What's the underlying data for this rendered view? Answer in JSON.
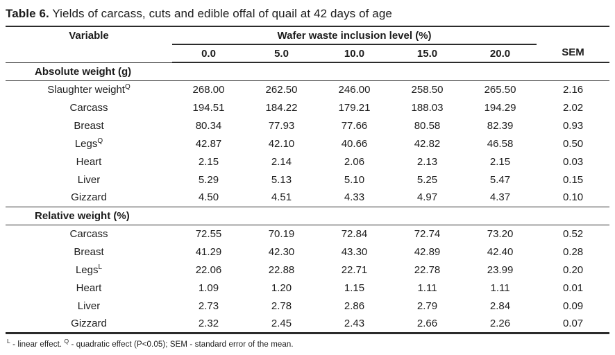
{
  "title": {
    "prefix": "Table 6.",
    "text": " Yields of carcass, cuts and edible offal of quail at 42 days of age"
  },
  "table": {
    "col1_header": "Variable",
    "span_header": "Wafer waste inclusion level (%)",
    "level_headers": [
      "0.0",
      "5.0",
      "10.0",
      "15.0",
      "20.0"
    ],
    "sem_header": "SEM",
    "sections": [
      {
        "header": "Absolute weight (g)",
        "rows": [
          {
            "label": "Slaughter weight",
            "sup": "Q",
            "values": [
              "268.00",
              "262.50",
              "246.00",
              "258.50",
              "265.50"
            ],
            "sem": "2.16"
          },
          {
            "label": "Carcass",
            "sup": "",
            "values": [
              "194.51",
              "184.22",
              "179.21",
              "188.03",
              "194.29"
            ],
            "sem": "2.02"
          },
          {
            "label": "Breast",
            "sup": "",
            "values": [
              "80.34",
              "77.93",
              "77.66",
              "80.58",
              "82.39"
            ],
            "sem": "0.93"
          },
          {
            "label": "Legs",
            "sup": "Q",
            "values": [
              "42.87",
              "42.10",
              "40.66",
              "42.82",
              "46.58"
            ],
            "sem": "0.50"
          },
          {
            "label": "Heart",
            "sup": "",
            "values": [
              "2.15",
              "2.14",
              "2.06",
              "2.13",
              "2.15"
            ],
            "sem": "0.03"
          },
          {
            "label": "Liver",
            "sup": "",
            "values": [
              "5.29",
              "5.13",
              "5.10",
              "5.25",
              "5.47"
            ],
            "sem": "0.15"
          },
          {
            "label": "Gizzard",
            "sup": "",
            "values": [
              "4.50",
              "4.51",
              "4.33",
              "4.97",
              "4.37"
            ],
            "sem": "0.10"
          }
        ]
      },
      {
        "header": "Relative weight (%)",
        "rows": [
          {
            "label": "Carcass",
            "sup": "",
            "values": [
              "72.55",
              "70.19",
              "72.84",
              "72.74",
              "73.20"
            ],
            "sem": "0.52"
          },
          {
            "label": "Breast",
            "sup": "",
            "values": [
              "41.29",
              "42.30",
              "43.30",
              "42.89",
              "42.40"
            ],
            "sem": "0.28"
          },
          {
            "label": "Legs",
            "sup": "L",
            "values": [
              "22.06",
              "22.88",
              "22.71",
              "22.78",
              "23.99"
            ],
            "sem": "0.20"
          },
          {
            "label": "Heart",
            "sup": "",
            "values": [
              "1.09",
              "1.20",
              "1.15",
              "1.11",
              "1.11"
            ],
            "sem": "0.01"
          },
          {
            "label": "Liver",
            "sup": "",
            "values": [
              "2.73",
              "2.78",
              "2.86",
              "2.79",
              "2.84"
            ],
            "sem": "0.09"
          },
          {
            "label": "Gizzard",
            "sup": "",
            "values": [
              "2.32",
              "2.45",
              "2.43",
              "2.66",
              "2.26"
            ],
            "sem": "0.07"
          }
        ]
      }
    ]
  },
  "footnote": {
    "parts": [
      {
        "sup": "L",
        "text": " - linear effect. "
      },
      {
        "sup": "Q",
        "text": " - quadratic effect (P<0.05); SEM - standard error of the mean."
      }
    ]
  },
  "colors": {
    "text": "#1c1c1c",
    "rule": "#2b2b2b",
    "background": "#ffffff"
  }
}
